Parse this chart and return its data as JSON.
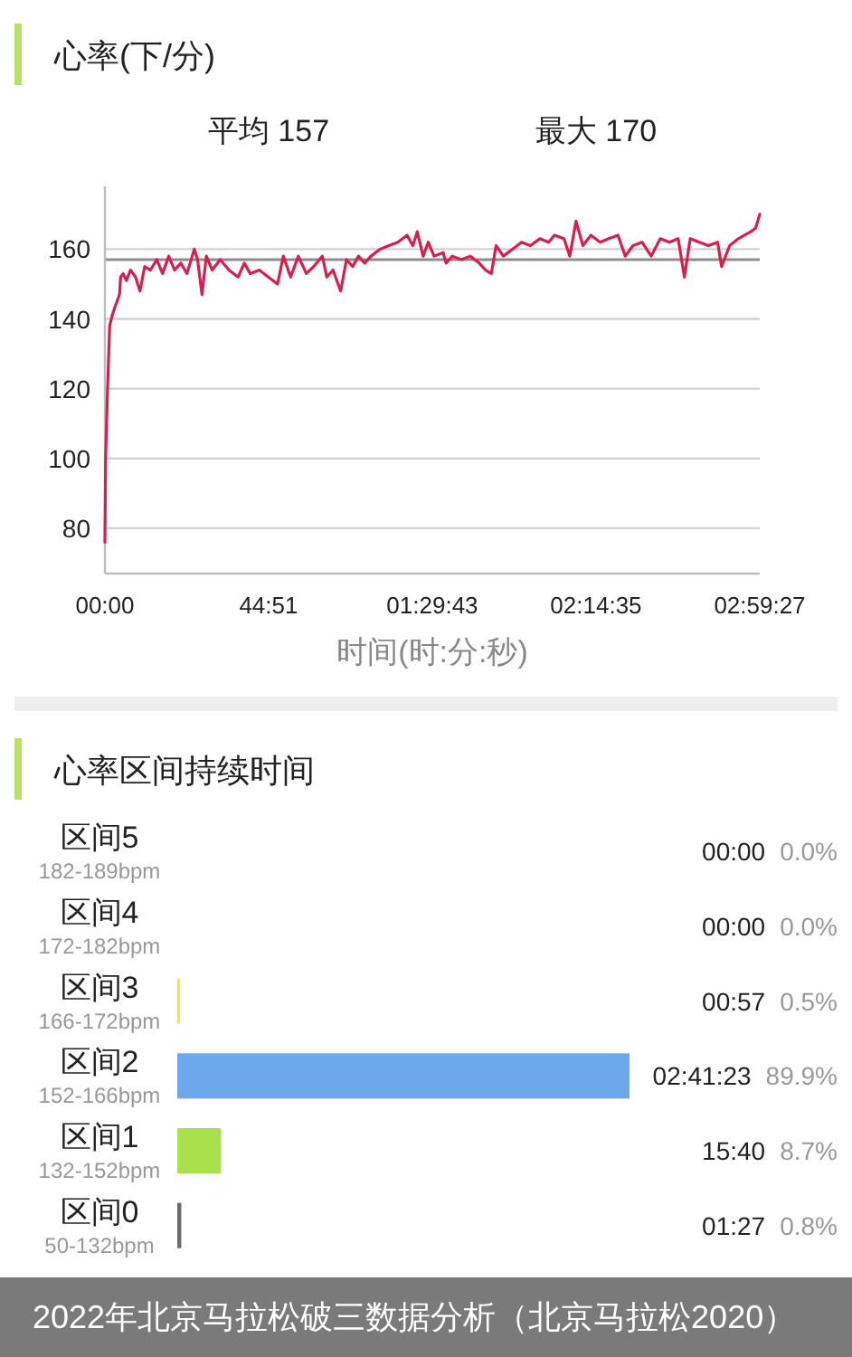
{
  "chart_data": [
    {
      "type": "line",
      "title": "心率(下/分)",
      "xlabel": "时间(时:分:秒)",
      "annotations": [
        "平均 157",
        "最大 170"
      ],
      "x": [
        0,
        0.2,
        0.7,
        1.3,
        2.0,
        2.6,
        3.3,
        4.0,
        4.3,
        5.0,
        5.9,
        7.0,
        8.4,
        9.6,
        10.9,
        12.5,
        14.2,
        15.8,
        17.5,
        19.1,
        20.8,
        22.5,
        24.5,
        25.4,
        26.6,
        27.8,
        29.4,
        31.6,
        34.0,
        36.5,
        38.2,
        39.8,
        42.3,
        44.8,
        47.3,
        48.9,
        50.9,
        53.0,
        55.2,
        57.2,
        59.6,
        60.8,
        62.5,
        64.6,
        66.2,
        67.9,
        69.5,
        71.2,
        72.9,
        75.4,
        77.8,
        80.3,
        82.8,
        84.4,
        85.6,
        87.2,
        88.6,
        90.2,
        92.7,
        93.5,
        95.2,
        97.7,
        100.1,
        102.6,
        104.3,
        105.9,
        107.2,
        109.2,
        111.7,
        114.2,
        116.6,
        119.2,
        121.6,
        123.2,
        125.8,
        127.4,
        129.1,
        131.0,
        133.2,
        135.7,
        138.1,
        140.6,
        142.6,
        144.7,
        147.2,
        149.7,
        152.2,
        154.7,
        157.1,
        158.8,
        160.4,
        162.9,
        165.4,
        167.9,
        169.0,
        171.2,
        173.6,
        175.3,
        177.0,
        178.3,
        179.45
      ],
      "series": [
        {
          "color": "#d81f4b",
          "values": [
            76,
            100,
            119,
            138,
            141,
            143,
            145,
            147,
            152,
            153,
            151,
            154,
            152,
            148,
            155,
            154,
            157,
            153,
            158,
            154,
            156,
            153,
            160,
            157,
            147,
            158,
            154,
            157,
            154,
            152,
            156,
            153,
            154,
            152,
            150,
            158,
            152,
            158,
            153,
            155,
            158,
            152,
            154,
            148,
            157,
            155,
            158,
            156,
            158,
            160,
            161,
            162,
            164,
            161,
            165,
            158,
            162,
            158,
            159,
            156,
            158,
            157,
            158,
            156,
            154,
            153,
            161,
            158,
            160,
            162,
            161,
            163,
            162,
            164,
            163,
            158,
            168,
            161,
            164,
            162,
            163,
            164,
            158,
            161,
            162,
            158,
            163,
            162,
            163,
            152,
            163,
            162,
            161,
            162,
            155,
            161,
            163,
            164,
            165,
            166,
            170
          ]
        }
      ],
      "xlim": [
        0,
        179.45
      ],
      "xticks": [
        {
          "value": 0,
          "label": "00:00"
        },
        {
          "value": 44.85,
          "label": "44:51"
        },
        {
          "value": 89.717,
          "label": "01:29:43"
        },
        {
          "value": 134.583,
          "label": "02:14:35"
        },
        {
          "value": 179.45,
          "label": "02:59:27"
        }
      ],
      "ylim": [
        67,
        178
      ],
      "yticks": [
        80,
        100,
        120,
        140,
        160
      ],
      "grid": "y",
      "ref_lines": [
        {
          "axis": "y",
          "value": 157,
          "color": "#8c8c8c"
        }
      ]
    },
    {
      "type": "bar",
      "orientation": "horizontal",
      "title": "心率区间持续时间",
      "categories": [
        "区间5\n182-189bpm",
        "区间4\n172-182bpm",
        "区间3\n166-172bpm",
        "区间2\n152-166bpm",
        "区间1\n132-152bpm",
        "区间0\n50-132bpm"
      ],
      "values": [
        0.0,
        0.0,
        0.5,
        89.9,
        8.7,
        0.8
      ],
      "colors": [
        null,
        null,
        "#e6de6e",
        "#6ea8ec",
        "#a9e04b",
        "#6b6b6b"
      ],
      "value_labels": [
        "00:00 0.0%",
        "00:00 0.0%",
        "00:57 0.5%",
        "02:41:23 89.9%",
        "15:40 8.7%",
        "01:27 0.8%"
      ],
      "annotations": [
        "2022年北京马拉松破三数据分析（北京马拉松2020）"
      ]
    }
  ]
}
